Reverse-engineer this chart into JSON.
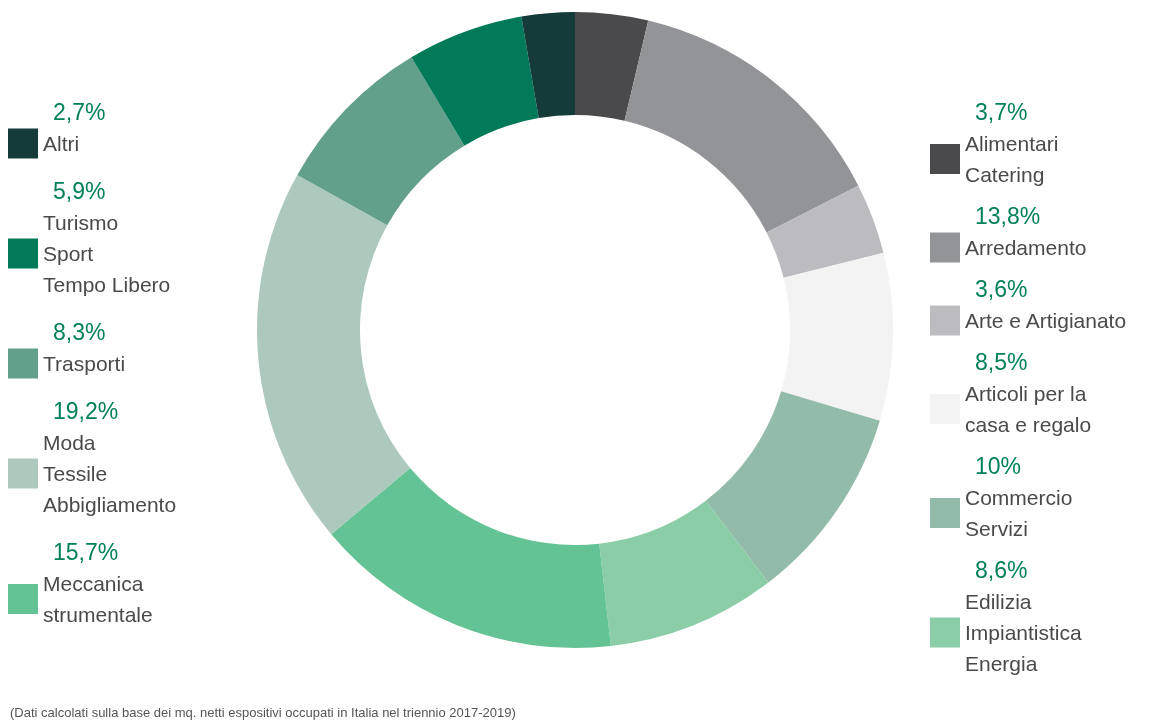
{
  "chart_data": {
    "type": "donut",
    "categories": [
      "Alimentari\nCatering",
      "Arredamento",
      "Arte e Artigianato",
      "Articoli per la\ncasa e regalo",
      "Commercio\nServizi",
      "Edilizia\nImpiantistica\nEnergia",
      "Meccanica\nstrumentale",
      "Moda\nTessile\nAbbigliamento",
      "Trasporti",
      "Turismo\nSport\nTempo Libero",
      "Altri"
    ],
    "values": [
      3.7,
      13.8,
      3.6,
      8.5,
      10,
      8.6,
      15.7,
      19.2,
      8.3,
      5.9,
      2.7
    ],
    "value_labels": [
      "3,7%",
      "13,8%",
      "3,6%",
      "8,5%",
      "10%",
      "8,6%",
      "15,7%",
      "19,2%",
      "8,3%",
      "5,9%",
      "2,7%"
    ],
    "colors": [
      "#4a4a4c",
      "#939497",
      "#bcbcc0",
      "#f3f3f3",
      "#93bbaa",
      "#8acda7",
      "#63c394",
      "#adc9be",
      "#62a08b",
      "#007a58",
      "#143b37"
    ],
    "legend": "left",
    "annotations": [
      "(Dati calcolati sulla base dei mq. netti espositivi occupati in Italia nel triennio 2017-2019)"
    ]
  }
}
